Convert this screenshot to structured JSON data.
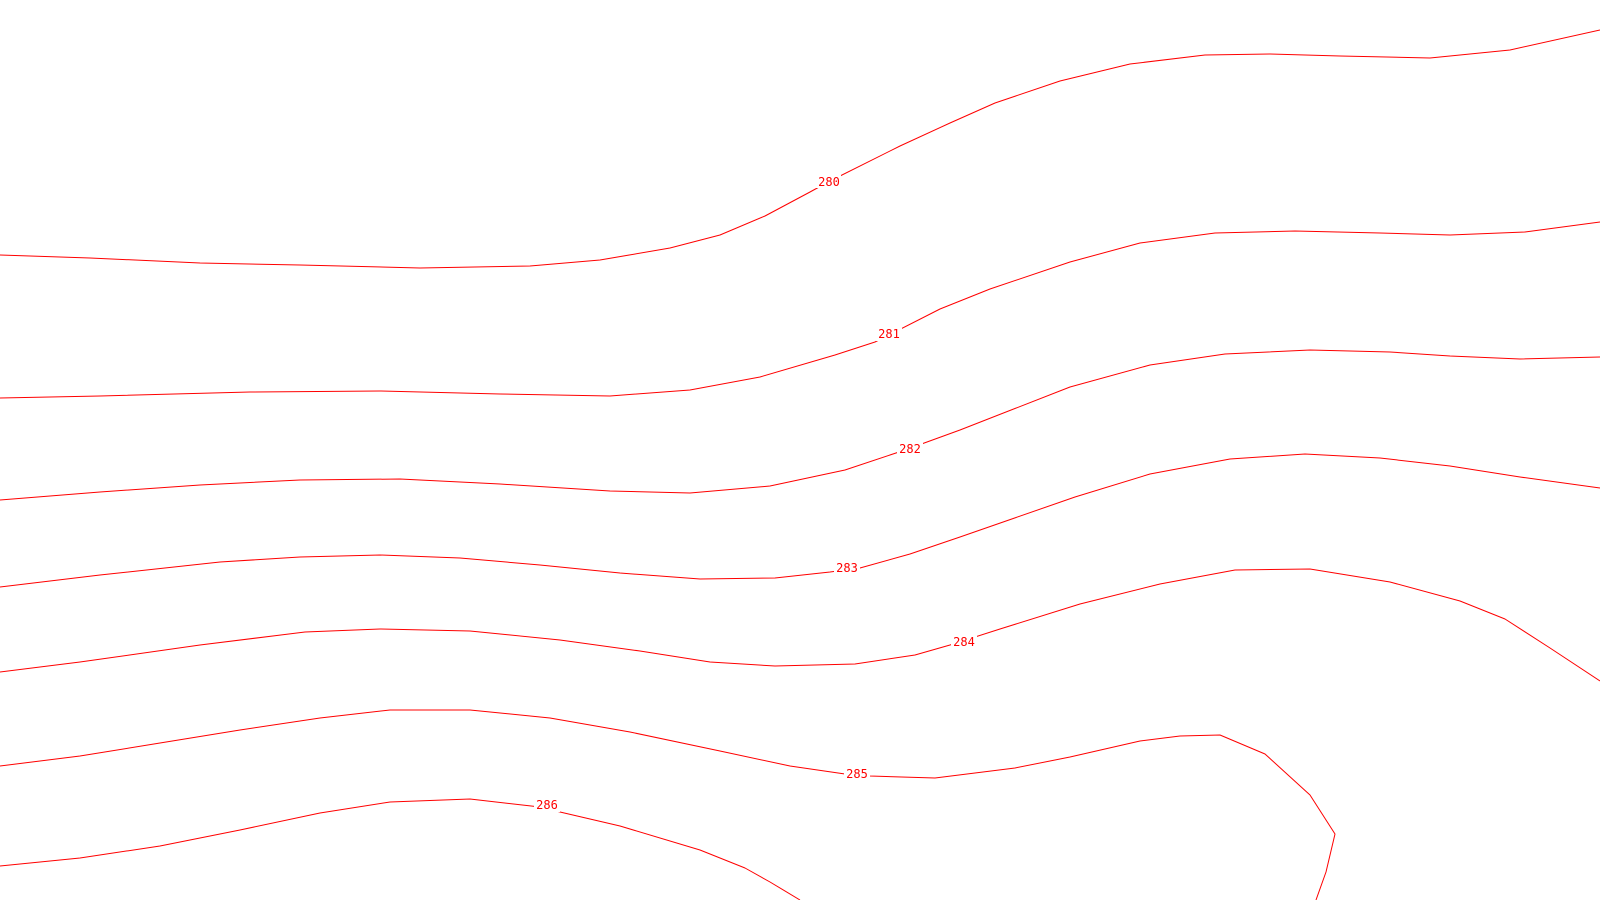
{
  "map": {
    "line_color": "#ff0000",
    "background_color": "#ffffff",
    "contours": [
      {
        "elevation_label": "280"
      },
      {
        "elevation_label": "281"
      },
      {
        "elevation_label": "282"
      },
      {
        "elevation_label": "283"
      },
      {
        "elevation_label": "284"
      },
      {
        "elevation_label": "285"
      },
      {
        "elevation_label": "286"
      }
    ]
  }
}
